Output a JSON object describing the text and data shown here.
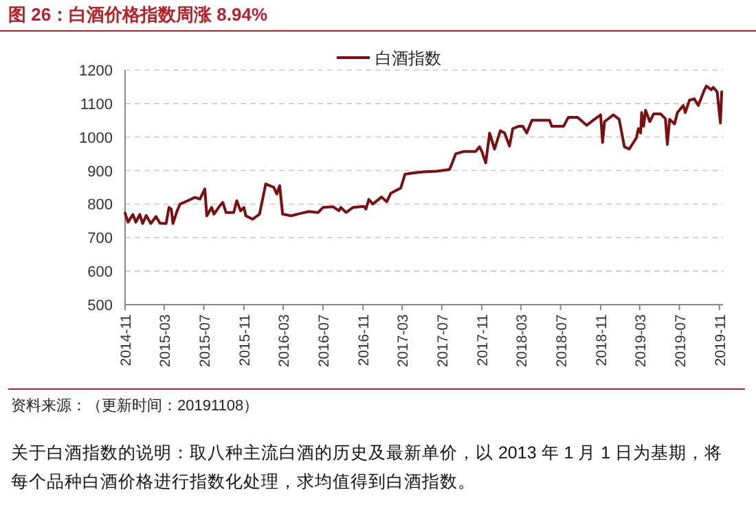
{
  "chart_data": {
    "type": "line",
    "title": "图 26：白酒价格指数周涨 8.94%",
    "annotations": [
      "资料来源：（更新时间：20191108）",
      "关于白酒指数的说明：取八种主流白酒的历史及最新单价，以 2013 年 1 月 1 日为基期，将每个品种白酒价格进行指数化处理，求均值得到白酒指数。"
    ],
    "x": [
      "2014-11-01",
      "2014-11-10",
      "2014-11-25",
      "2014-12-04",
      "2014-12-16",
      "2014-12-25",
      "2015-01-05",
      "2015-01-19",
      "2015-02-04",
      "2015-02-16",
      "2015-03-07",
      "2015-03-16",
      "2015-03-23",
      "2015-03-28",
      "2015-04-10",
      "2015-04-19",
      "2015-05-01",
      "2015-06-04",
      "2015-06-19",
      "2015-07-04",
      "2015-07-10",
      "2015-07-25",
      "2015-08-01",
      "2015-08-19",
      "2015-08-28",
      "2015-09-07",
      "2015-10-01",
      "2015-10-10",
      "2015-10-22",
      "2015-11-01",
      "2015-11-07",
      "2015-11-28",
      "2015-12-19",
      "2016-01-07",
      "2016-02-01",
      "2016-02-10",
      "2016-02-19",
      "2016-02-28",
      "2016-03-25",
      "2016-04-22",
      "2016-05-19",
      "2016-06-16",
      "2016-07-01",
      "2016-08-01",
      "2016-08-19",
      "2016-08-25",
      "2016-09-10",
      "2016-10-01",
      "2016-11-04",
      "2016-11-10",
      "2016-11-19",
      "2016-12-01",
      "2016-12-28",
      "2017-01-13",
      "2017-01-25",
      "2017-02-25",
      "2017-03-10",
      "2017-03-28",
      "2017-05-04",
      "2017-06-16",
      "2017-07-25",
      "2017-08-13",
      "2017-09-07",
      "2017-10-13",
      "2017-10-25",
      "2017-11-01",
      "2017-11-13",
      "2017-11-25",
      "2017-12-10",
      "2017-12-28",
      "2018-01-10",
      "2018-01-25",
      "2018-02-04",
      "2018-02-22",
      "2018-03-07",
      "2018-03-19",
      "2018-04-04",
      "2018-05-28",
      "2018-06-04",
      "2018-07-10",
      "2018-07-25",
      "2018-08-22",
      "2018-09-19",
      "2018-10-16",
      "2018-11-01",
      "2018-11-07",
      "2018-11-13",
      "2018-12-10",
      "2018-12-28",
      "2019-01-13",
      "2019-01-28",
      "2019-02-19",
      "2019-02-25",
      "2019-03-04",
      "2019-03-07",
      "2019-03-13",
      "2019-03-19",
      "2019-04-01",
      "2019-04-13",
      "2019-05-04",
      "2019-05-19",
      "2019-05-25",
      "2019-06-01",
      "2019-06-16",
      "2019-06-25",
      "2019-07-13",
      "2019-07-19",
      "2019-08-01",
      "2019-08-16",
      "2019-08-28",
      "2019-09-16",
      "2019-09-22",
      "2019-10-07",
      "2019-10-13",
      "2019-10-25",
      "2019-11-04",
      "2019-11-08"
    ],
    "series": [
      {
        "name": "白酒指数",
        "color": "#7a0f12",
        "values": [
          773,
          746,
          769,
          746,
          769,
          742,
          766,
          742,
          763,
          743,
          742,
          790,
          785,
          742,
          780,
          800,
          805,
          820,
          815,
          845,
          765,
          790,
          770,
          795,
          805,
          775,
          775,
          810,
          780,
          790,
          765,
          755,
          770,
          860,
          850,
          830,
          855,
          770,
          765,
          772,
          778,
          775,
          790,
          792,
          780,
          790,
          775,
          790,
          793,
          785,
          814,
          800,
          821,
          807,
          832,
          848,
          889,
          892,
          896,
          898,
          903,
          950,
          957,
          957,
          971,
          957,
          923,
          1012,
          964,
          1019,
          1012,
          973,
          1025,
          1032,
          1032,
          1012,
          1050,
          1050,
          1032,
          1032,
          1059,
          1059,
          1035,
          1055,
          1066,
          984,
          1046,
          1066,
          1053,
          971,
          964,
          998,
          1025,
          1012,
          1073,
          1032,
          1080,
          1046,
          1069,
          1069,
          1055,
          978,
          1053,
          1039,
          1073,
          1094,
          1073,
          1110,
          1114,
          1094,
          1141,
          1152,
          1141,
          1148,
          1135,
          1042,
          1135
        ]
      }
    ],
    "xlim": [
      "2014-11-01",
      "2019-11-12"
    ],
    "xticks": [
      "2014-11",
      "2015-03",
      "2015-07",
      "2015-11",
      "2016-03",
      "2016-07",
      "2016-11",
      "2017-03",
      "2017-07",
      "2017-11",
      "2018-03",
      "2018-07",
      "2018-11",
      "2019-03",
      "2019-07",
      "2019-11"
    ],
    "ylim": [
      500,
      1200
    ],
    "yticks": [
      500,
      600,
      700,
      800,
      900,
      1000,
      1100,
      1200
    ],
    "grid": "y",
    "legend": "top"
  }
}
